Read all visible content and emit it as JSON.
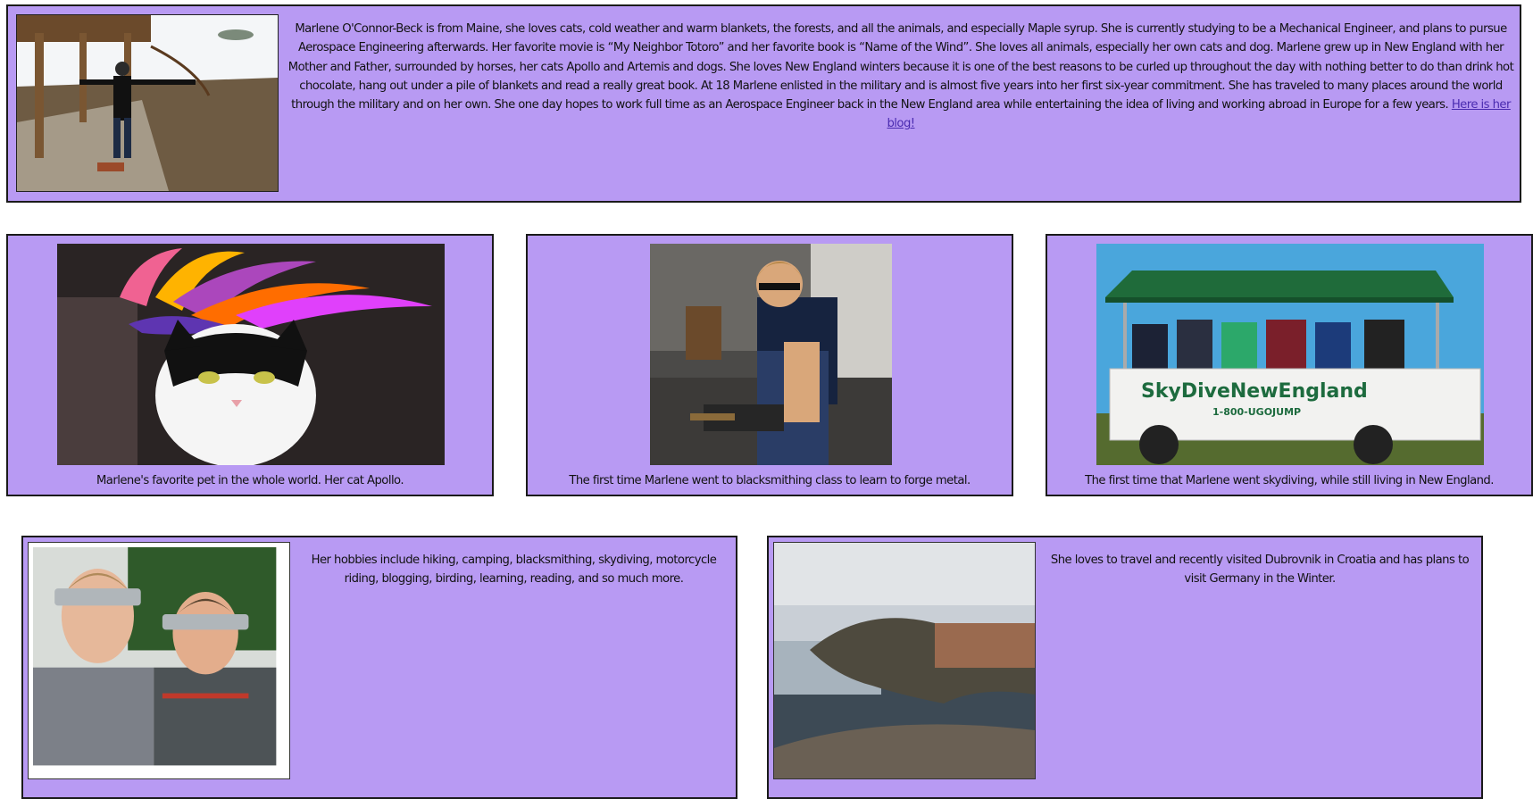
{
  "intro": {
    "text": "Marlene O'Connor-Beck is from Maine, she loves cats, cold weather and warm blankets, the forests, and all the animals, and especially Maple syrup. She is currently studying to be a Mechanical Engineer, and plans to pursue Aerospace Engineering afterwards. Her favorite movie is “My Neighbor Totoro” and her favorite book is “Name of the Wind”. She loves all animals, especially her own cats and dog. Marlene grew up in New England with her Mother and Father, surrounded by horses, her cats Apollo and Artemis and dogs. She loves New England winters because it is one of the best reasons to be curled up throughout the day with nothing better to do than drink hot chocolate, hang out under a pile of blankets and read a really great book. At 18 Marlene enlisted in the military and is almost five years into her first six-year commitment. She has traveled to many places around the world through the military and on her own. She one day hopes to work full time as an Aerospace Engineer back in the New England area while entertaining the idea of living and working abroad in Europe for a few years.",
    "link_label": "Here is her blog!"
  },
  "gallery": {
    "cat_caption": "Marlene's favorite pet in the whole world. Her cat Apollo.",
    "forge_caption": "The first time Marlene went to blacksmithing class to learn to forge metal.",
    "skydive_caption": "The first time that Marlene went skydiving, while still living in New England.",
    "skydive_truck_sign": "SkyDiveNewEngland",
    "skydive_truck_phone": "1-800-UGOJUMP"
  },
  "hobbies": {
    "text": "Her hobbies include hiking, camping, blacksmithing, skydiving, motorcycle riding, blogging, birding, learning, reading, and so much more."
  },
  "travel": {
    "text": "She loves to travel and recently visited Dubrovnik in Croatia and has plans to visit Germany in the Winter."
  },
  "colors": {
    "panel_background": "#b89af3",
    "panel_border": "#1a1a1a",
    "link": "#4a2bb0"
  }
}
